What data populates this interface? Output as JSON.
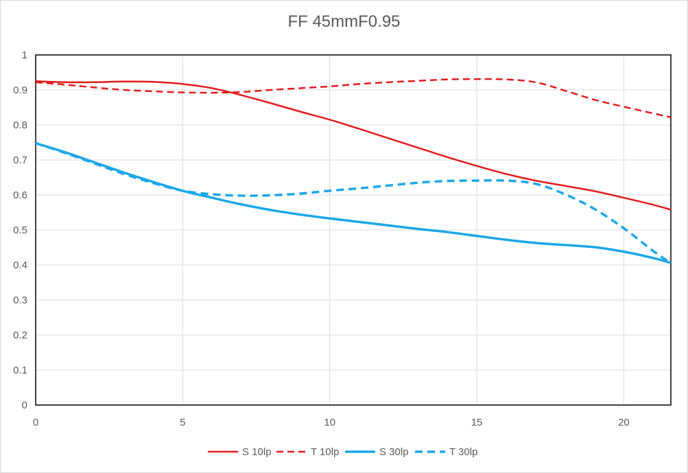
{
  "chart_data": {
    "type": "line",
    "title": "FF 45mmF0.95",
    "xlabel": "",
    "ylabel": "",
    "xlim": [
      0,
      21.6
    ],
    "ylim": [
      0,
      1
    ],
    "x_ticks": [
      0,
      5,
      10,
      15,
      20
    ],
    "y_ticks": [
      0,
      0.1,
      0.2,
      0.3,
      0.4,
      0.5,
      0.6,
      0.7,
      0.8,
      0.9,
      1
    ],
    "grid": true,
    "legend_position": "bottom",
    "series": [
      {
        "name": "S 10lp",
        "color": "#e31a1c",
        "dash": "solid",
        "points": [
          [
            0,
            0.925
          ],
          [
            1,
            0.922
          ],
          [
            2,
            0.922
          ],
          [
            3,
            0.924
          ],
          [
            4,
            0.923
          ],
          [
            5,
            0.917
          ],
          [
            6,
            0.905
          ],
          [
            7,
            0.885
          ],
          [
            8,
            0.862
          ],
          [
            9,
            0.838
          ],
          [
            10,
            0.815
          ],
          [
            11,
            0.789
          ],
          [
            12,
            0.762
          ],
          [
            13,
            0.735
          ],
          [
            14,
            0.708
          ],
          [
            15,
            0.683
          ],
          [
            16,
            0.66
          ],
          [
            17,
            0.641
          ],
          [
            18,
            0.626
          ],
          [
            19,
            0.611
          ],
          [
            20,
            0.592
          ],
          [
            21,
            0.572
          ],
          [
            21.6,
            0.558
          ]
        ]
      },
      {
        "name": "T 10lp",
        "color": "#e31a1c",
        "dash": "dashed",
        "points": [
          [
            0,
            0.922
          ],
          [
            1,
            0.915
          ],
          [
            2,
            0.907
          ],
          [
            3,
            0.9
          ],
          [
            4,
            0.896
          ],
          [
            5,
            0.893
          ],
          [
            6,
            0.892
          ],
          [
            7,
            0.894
          ],
          [
            8,
            0.9
          ],
          [
            9,
            0.905
          ],
          [
            10,
            0.91
          ],
          [
            11,
            0.917
          ],
          [
            12,
            0.922
          ],
          [
            13,
            0.926
          ],
          [
            14,
            0.93
          ],
          [
            15,
            0.931
          ],
          [
            16,
            0.93
          ],
          [
            17,
            0.922
          ],
          [
            18,
            0.898
          ],
          [
            19,
            0.872
          ],
          [
            20,
            0.852
          ],
          [
            21,
            0.833
          ],
          [
            21.6,
            0.822
          ]
        ]
      },
      {
        "name": "S 30lp",
        "color": "#1aa7e8",
        "dash": "solid",
        "points": [
          [
            0,
            0.748
          ],
          [
            1,
            0.722
          ],
          [
            2,
            0.693
          ],
          [
            3,
            0.664
          ],
          [
            4,
            0.637
          ],
          [
            5,
            0.612
          ],
          [
            6,
            0.592
          ],
          [
            7,
            0.573
          ],
          [
            8,
            0.557
          ],
          [
            9,
            0.544
          ],
          [
            10,
            0.533
          ],
          [
            11,
            0.523
          ],
          [
            12,
            0.513
          ],
          [
            13,
            0.503
          ],
          [
            14,
            0.494
          ],
          [
            15,
            0.483
          ],
          [
            16,
            0.472
          ],
          [
            17,
            0.463
          ],
          [
            18,
            0.457
          ],
          [
            19,
            0.451
          ],
          [
            20,
            0.438
          ],
          [
            21,
            0.42
          ],
          [
            21.6,
            0.406
          ]
        ]
      },
      {
        "name": "T 30lp",
        "color": "#1aa7e8",
        "dash": "dashed",
        "points": [
          [
            0,
            0.748
          ],
          [
            1,
            0.72
          ],
          [
            2,
            0.69
          ],
          [
            3,
            0.66
          ],
          [
            4,
            0.634
          ],
          [
            5,
            0.612
          ],
          [
            6,
            0.602
          ],
          [
            7,
            0.598
          ],
          [
            8,
            0.599
          ],
          [
            9,
            0.604
          ],
          [
            10,
            0.612
          ],
          [
            11,
            0.619
          ],
          [
            12,
            0.627
          ],
          [
            13,
            0.635
          ],
          [
            14,
            0.64
          ],
          [
            15,
            0.641
          ],
          [
            16,
            0.641
          ],
          [
            17,
            0.632
          ],
          [
            18,
            0.602
          ],
          [
            19,
            0.56
          ],
          [
            20,
            0.505
          ],
          [
            21,
            0.44
          ],
          [
            21.6,
            0.405
          ]
        ]
      }
    ]
  }
}
